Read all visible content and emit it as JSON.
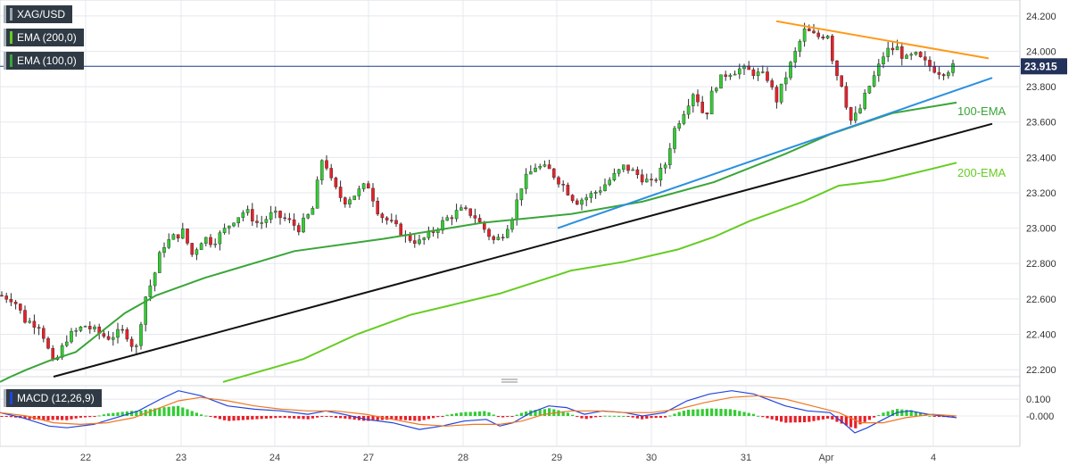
{
  "legend": {
    "symbol": "XAG/USD",
    "ema200": "EMA (200,0)",
    "ema100": "EMA (100,0)",
    "macd": "MACD (12,26,9)"
  },
  "colors": {
    "bull": "#33cc33",
    "bear": "#e8202a",
    "ema100": "#3aa53a",
    "ema200": "#66cc22",
    "support": "#111111",
    "rising_line": "#2b8fe0",
    "resistance": "#ff9a1a",
    "price_line": "#1b3a8a",
    "macd_line": "#2244dd",
    "signal_line": "#ee7722",
    "grid": "#e6e8ec"
  },
  "chart_data": [
    {
      "type": "candlestick",
      "symbol": "XAG/USD",
      "x_ticks": [
        "22",
        "23",
        "24",
        "27",
        "28",
        "29",
        "30",
        "31",
        "Apr",
        "4"
      ],
      "y_ticks": [
        "22.200",
        "22.400",
        "22.600",
        "22.800",
        "23.000",
        "23.200",
        "23.400",
        "23.600",
        "23.800",
        "24.000",
        "24.200"
      ],
      "ylim": [
        22.16,
        24.29
      ],
      "last_price": "23.915",
      "annotations": {
        "ema100_label": "100-EMA",
        "ema200_label": "200-EMA"
      },
      "ema100_anchors": [
        [
          0,
          22.13
        ],
        [
          12,
          22.16
        ],
        [
          30,
          22.2
        ],
        [
          55,
          22.25
        ],
        [
          85,
          22.3
        ],
        [
          105,
          22.38
        ],
        [
          140,
          22.52
        ],
        [
          175,
          22.62
        ],
        [
          230,
          22.72
        ],
        [
          330,
          22.87
        ],
        [
          430,
          22.94
        ],
        [
          540,
          23.03
        ],
        [
          640,
          23.08
        ],
        [
          720,
          23.15
        ],
        [
          800,
          23.26
        ],
        [
          880,
          23.42
        ],
        [
          930,
          23.53
        ],
        [
          1000,
          23.65
        ],
        [
          1072,
          23.71
        ]
      ],
      "ema200_anchors": [
        [
          250,
          22.13
        ],
        [
          340,
          22.26
        ],
        [
          400,
          22.4
        ],
        [
          460,
          22.51
        ],
        [
          560,
          22.63
        ],
        [
          640,
          22.76
        ],
        [
          700,
          22.81
        ],
        [
          760,
          22.88
        ],
        [
          800,
          22.95
        ],
        [
          840,
          23.04
        ],
        [
          900,
          23.15
        ],
        [
          940,
          23.24
        ],
        [
          990,
          23.27
        ],
        [
          1040,
          23.33
        ],
        [
          1072,
          23.37
        ]
      ],
      "trendlines": [
        {
          "name": "support",
          "from": [
            60,
            22.16
          ],
          "to": [
            1112,
            23.59
          ]
        },
        {
          "name": "rising",
          "from": [
            625,
            23.0
          ],
          "to": [
            1112,
            23.85
          ]
        },
        {
          "name": "resistance",
          "from": [
            870,
            24.17
          ],
          "to": [
            1108,
            23.96
          ]
        }
      ],
      "price_anchors": [
        [
          0,
          22.62
        ],
        [
          15,
          22.6
        ],
        [
          28,
          22.48
        ],
        [
          45,
          22.45
        ],
        [
          60,
          22.22
        ],
        [
          75,
          22.38
        ],
        [
          95,
          22.45
        ],
        [
          120,
          22.38
        ],
        [
          140,
          22.42
        ],
        [
          152,
          22.3
        ],
        [
          162,
          22.6
        ],
        [
          172,
          22.72
        ],
        [
          182,
          22.9
        ],
        [
          195,
          22.95
        ],
        [
          205,
          22.98
        ],
        [
          215,
          22.85
        ],
        [
          228,
          22.95
        ],
        [
          238,
          22.92
        ],
        [
          250,
          22.98
        ],
        [
          262,
          23.05
        ],
        [
          275,
          23.1
        ],
        [
          290,
          23.02
        ],
        [
          305,
          23.08
        ],
        [
          320,
          23.05
        ],
        [
          335,
          23.0
        ],
        [
          350,
          23.1
        ],
        [
          362,
          23.42
        ],
        [
          372,
          23.25
        ],
        [
          385,
          23.15
        ],
        [
          400,
          23.2
        ],
        [
          412,
          23.25
        ],
        [
          425,
          23.08
        ],
        [
          440,
          23.02
        ],
        [
          455,
          22.95
        ],
        [
          470,
          22.92
        ],
        [
          485,
          22.98
        ],
        [
          500,
          23.05
        ],
        [
          515,
          23.1
        ],
        [
          530,
          23.08
        ],
        [
          545,
          22.98
        ],
        [
          555,
          22.92
        ],
        [
          565,
          22.98
        ],
        [
          575,
          23.08
        ],
        [
          585,
          23.25
        ],
        [
          600,
          23.35
        ],
        [
          615,
          23.33
        ],
        [
          630,
          23.25
        ],
        [
          645,
          23.15
        ],
        [
          660,
          23.18
        ],
        [
          672,
          23.22
        ],
        [
          685,
          23.28
        ],
        [
          700,
          23.35
        ],
        [
          715,
          23.3
        ],
        [
          730,
          23.25
        ],
        [
          745,
          23.35
        ],
        [
          755,
          23.55
        ],
        [
          765,
          23.65
        ],
        [
          778,
          23.78
        ],
        [
          790,
          23.62
        ],
        [
          800,
          23.8
        ],
        [
          815,
          23.88
        ],
        [
          830,
          23.9
        ],
        [
          845,
          23.88
        ],
        [
          860,
          23.85
        ],
        [
          870,
          23.72
        ],
        [
          880,
          23.85
        ],
        [
          892,
          24.0
        ],
        [
          902,
          24.12
        ],
        [
          915,
          24.08
        ],
        [
          928,
          24.1
        ],
        [
          935,
          23.9
        ],
        [
          945,
          23.8
        ],
        [
          952,
          23.6
        ],
        [
          962,
          23.65
        ],
        [
          972,
          23.78
        ],
        [
          982,
          23.88
        ],
        [
          992,
          24.0
        ],
        [
          1005,
          24.02
        ],
        [
          1015,
          23.95
        ],
        [
          1025,
          23.98
        ],
        [
          1040,
          23.92
        ],
        [
          1055,
          23.88
        ],
        [
          1070,
          23.915
        ]
      ],
      "macd_ylim": [
        -0.18,
        0.18
      ],
      "macd_ticks": [
        "0.100",
        "-0.000"
      ],
      "macd_anchors": [
        [
          0,
          0.02
        ],
        [
          25,
          -0.01
        ],
        [
          55,
          -0.06
        ],
        [
          75,
          -0.07
        ],
        [
          105,
          -0.05
        ],
        [
          130,
          -0.01
        ],
        [
          155,
          0.03
        ],
        [
          180,
          0.1
        ],
        [
          200,
          0.15
        ],
        [
          225,
          0.12
        ],
        [
          255,
          0.06
        ],
        [
          285,
          0.04
        ],
        [
          315,
          0.03
        ],
        [
          345,
          0.01
        ],
        [
          365,
          0.03
        ],
        [
          385,
          0.01
        ],
        [
          410,
          -0.02
        ],
        [
          440,
          -0.04
        ],
        [
          470,
          -0.08
        ],
        [
          495,
          -0.06
        ],
        [
          520,
          -0.03
        ],
        [
          545,
          -0.02
        ],
        [
          560,
          -0.06
        ],
        [
          575,
          -0.04
        ],
        [
          595,
          0.02
        ],
        [
          615,
          0.06
        ],
        [
          635,
          0.05
        ],
        [
          655,
          0.01
        ],
        [
          675,
          0.03
        ],
        [
          700,
          0.02
        ],
        [
          720,
          0.0
        ],
        [
          745,
          0.02
        ],
        [
          770,
          0.09
        ],
        [
          795,
          0.13
        ],
        [
          820,
          0.15
        ],
        [
          845,
          0.13
        ],
        [
          860,
          0.1
        ],
        [
          880,
          0.06
        ],
        [
          905,
          0.03
        ],
        [
          930,
          0.02
        ],
        [
          945,
          -0.04
        ],
        [
          958,
          -0.1
        ],
        [
          972,
          -0.07
        ],
        [
          990,
          -0.02
        ],
        [
          1005,
          0.02
        ],
        [
          1020,
          0.03
        ],
        [
          1040,
          0.01
        ],
        [
          1072,
          -0.01
        ]
      ],
      "signal_anchors": [
        [
          0,
          0.02
        ],
        [
          30,
          0.0
        ],
        [
          60,
          -0.04
        ],
        [
          90,
          -0.05
        ],
        [
          120,
          -0.04
        ],
        [
          150,
          -0.01
        ],
        [
          175,
          0.04
        ],
        [
          200,
          0.09
        ],
        [
          225,
          0.11
        ],
        [
          255,
          0.09
        ],
        [
          285,
          0.06
        ],
        [
          315,
          0.04
        ],
        [
          345,
          0.03
        ],
        [
          375,
          0.03
        ],
        [
          410,
          0.01
        ],
        [
          440,
          -0.02
        ],
        [
          470,
          -0.05
        ],
        [
          500,
          -0.06
        ],
        [
          530,
          -0.05
        ],
        [
          560,
          -0.05
        ],
        [
          585,
          -0.03
        ],
        [
          610,
          0.01
        ],
        [
          640,
          0.03
        ],
        [
          670,
          0.03
        ],
        [
          700,
          0.02
        ],
        [
          730,
          0.02
        ],
        [
          760,
          0.04
        ],
        [
          790,
          0.08
        ],
        [
          820,
          0.11
        ],
        [
          850,
          0.12
        ],
        [
          880,
          0.1
        ],
        [
          910,
          0.06
        ],
        [
          940,
          0.02
        ],
        [
          965,
          -0.04
        ],
        [
          990,
          -0.04
        ],
        [
          1015,
          -0.01
        ],
        [
          1045,
          0.01
        ],
        [
          1072,
          0.0
        ]
      ]
    }
  ]
}
